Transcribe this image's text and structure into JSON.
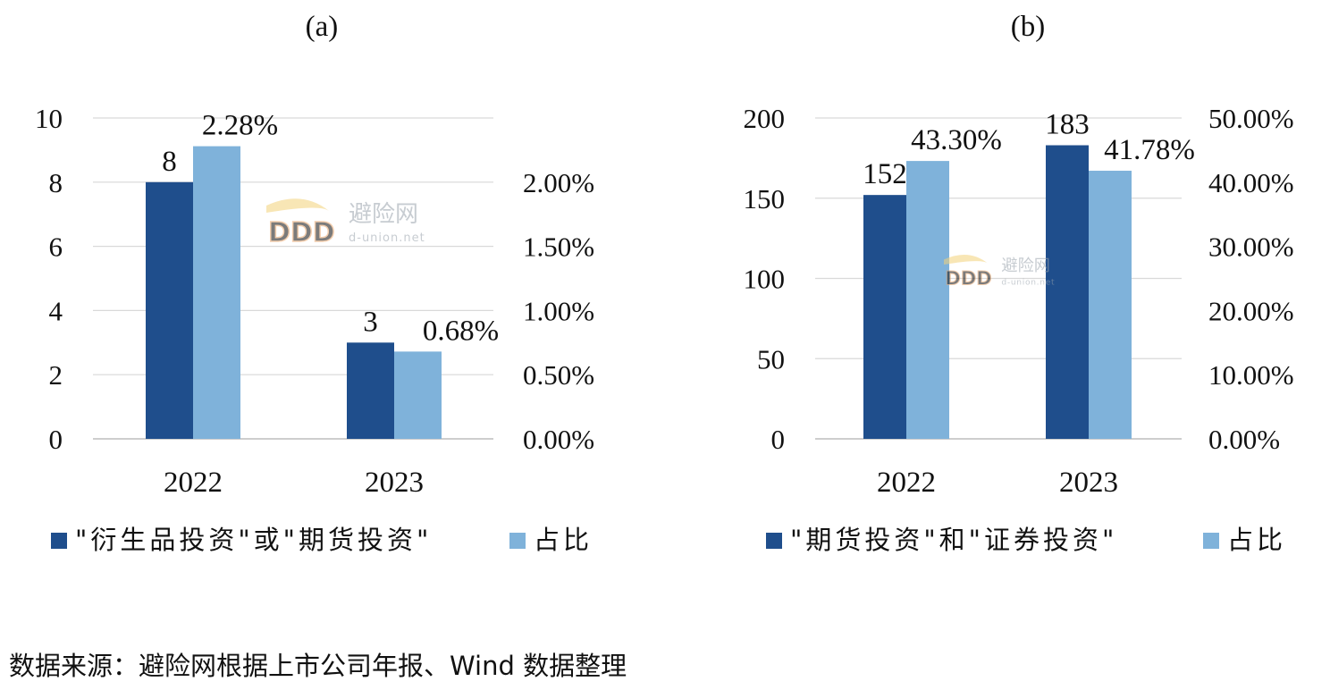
{
  "chart_data": [
    {
      "type": "bar",
      "title": "(a)",
      "categories": [
        "2022",
        "2023"
      ],
      "series": [
        {
          "name": "\"衍生品投资\"或\"期货投资\"",
          "axis": "left",
          "values": [
            8,
            3
          ],
          "labels": [
            "8",
            "3"
          ],
          "color": "#1f4e8c"
        },
        {
          "name": "占比",
          "axis": "right",
          "values": [
            2.28,
            0.68
          ],
          "labels": [
            "2.28%",
            "0.68%"
          ],
          "color": "#7fb2da"
        }
      ],
      "left_axis": {
        "min": 0,
        "max": 10,
        "ticks": [
          "0",
          "2",
          "4",
          "6",
          "8",
          "10"
        ],
        "tick_values": [
          0,
          2,
          4,
          6,
          8,
          10
        ]
      },
      "right_axis": {
        "min": 0,
        "max": 2.5,
        "ticks": [
          "0.00%",
          "0.50%",
          "1.00%",
          "1.50%",
          "2.00%"
        ],
        "tick_values": [
          0,
          0.5,
          1.0,
          1.5,
          2.0
        ]
      },
      "grid": true,
      "legend_position": "bottom"
    },
    {
      "type": "bar",
      "title": "(b)",
      "categories": [
        "2022",
        "2023"
      ],
      "series": [
        {
          "name": "\"期货投资\"和\"证券投资\"",
          "axis": "left",
          "values": [
            152,
            183
          ],
          "labels": [
            "152",
            "183"
          ],
          "color": "#1f4e8c"
        },
        {
          "name": "占比",
          "axis": "right",
          "values": [
            43.3,
            41.78
          ],
          "labels": [
            "43.30%",
            "41.78%"
          ],
          "color": "#7fb2da"
        }
      ],
      "left_axis": {
        "min": 0,
        "max": 200,
        "ticks": [
          "0",
          "50",
          "100",
          "150",
          "200"
        ],
        "tick_values": [
          0,
          50,
          100,
          150,
          200
        ]
      },
      "right_axis": {
        "min": 0,
        "max": 50,
        "ticks": [
          "0.00%",
          "10.00%",
          "20.00%",
          "30.00%",
          "40.00%",
          "50.00%"
        ],
        "tick_values": [
          0,
          10,
          20,
          30,
          40,
          50
        ]
      },
      "grid": true,
      "legend_position": "bottom"
    }
  ],
  "watermark": {
    "brand": "避险网",
    "domain": "d-union.net",
    "logo": "DDD"
  },
  "source_note": "数据来源：避险网根据上市公司年报、Wind 数据整理"
}
